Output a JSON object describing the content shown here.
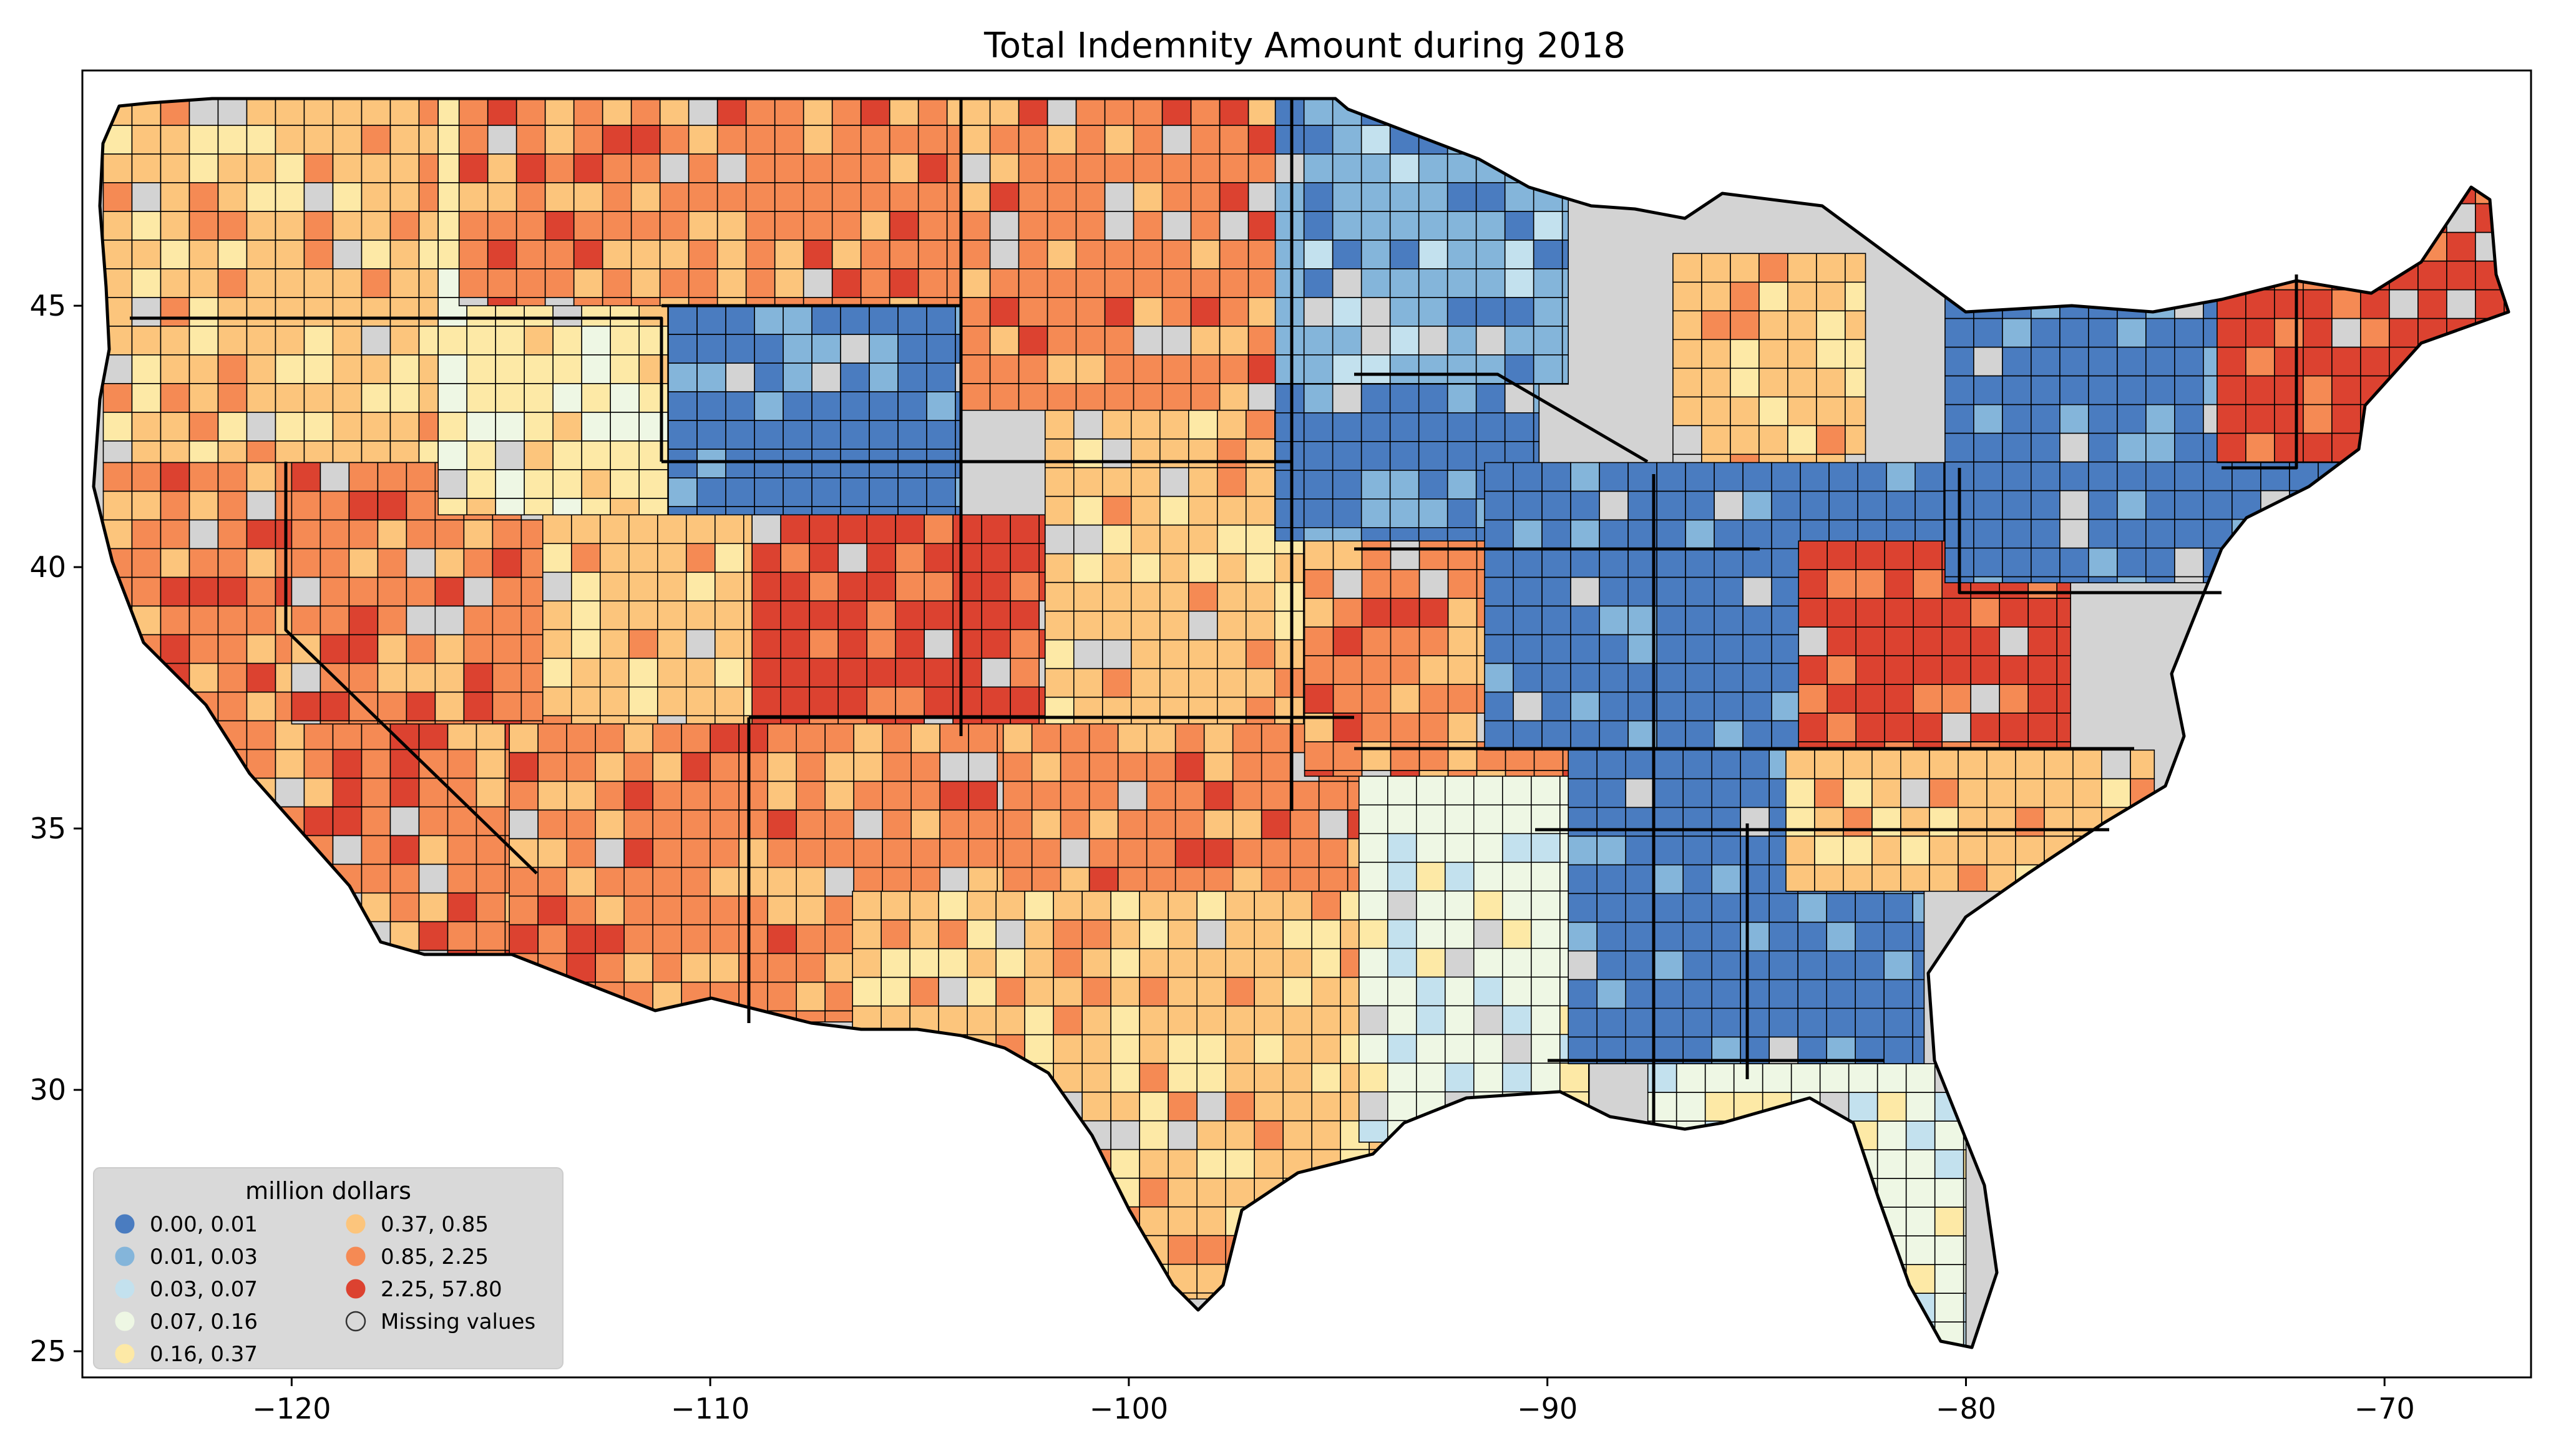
{
  "chart_data": {
    "type": "choropleth",
    "title": "Total Indemnity Amount during 2018",
    "xlabel": "",
    "ylabel": "",
    "xlim": [
      -125,
      -66.5
    ],
    "ylim": [
      24.5,
      49.5
    ],
    "x_ticks": [
      -120,
      -110,
      -100,
      -90,
      -80,
      -70
    ],
    "x_tick_labels": [
      "−120",
      "−110",
      "−100",
      "−90",
      "−80",
      "−70"
    ],
    "y_ticks": [
      25,
      30,
      35,
      40,
      45
    ],
    "y_tick_labels": [
      "25",
      "30",
      "35",
      "40",
      "45"
    ],
    "grid": false,
    "legend": {
      "title": "million dollars",
      "placement": "lower-left",
      "columns": 2,
      "classes": [
        {
          "label": "0.00,  0.01",
          "min": 0.0,
          "max": 0.01,
          "color": "#4a7cc0"
        },
        {
          "label": "0.01,  0.03",
          "min": 0.01,
          "max": 0.03,
          "color": "#84b5da"
        },
        {
          "label": "0.03,  0.07",
          "min": 0.03,
          "max": 0.07,
          "color": "#c3e1ee"
        },
        {
          "label": "0.07,  0.16",
          "min": 0.07,
          "max": 0.16,
          "color": "#eef7e4"
        },
        {
          "label": "0.16,  0.37",
          "min": 0.16,
          "max": 0.37,
          "color": "#fde9a6"
        },
        {
          "label": "0.37,  0.85",
          "min": 0.37,
          "max": 0.85,
          "color": "#fcc57c"
        },
        {
          "label": "0.85,  2.25",
          "min": 0.85,
          "max": 2.25,
          "color": "#f58a54"
        },
        {
          "label": "2.25, 57.80",
          "min": 2.25,
          "max": 57.8,
          "color": "#dc4230"
        },
        {
          "label": "Missing values",
          "color": "#d3d3d3"
        }
      ]
    },
    "regions": [
      {
        "lat_min": 42,
        "lat_max": 49,
        "lon_min": -124.5,
        "lon_max": -116.5,
        "class": 6
      },
      {
        "lat_min": 32,
        "lat_max": 42,
        "lon_min": -124.5,
        "lon_max": -114,
        "class": 7
      },
      {
        "lat_min": 37,
        "lat_max": 42,
        "lon_min": -120,
        "lon_max": -114,
        "class": 7
      },
      {
        "lat_min": 41,
        "lat_max": 49,
        "lon_min": -116.5,
        "lon_max": -104,
        "class": 5
      },
      {
        "lat_min": 41,
        "lat_max": 45,
        "lon_min": -111,
        "lon_max": -104,
        "class": 1
      },
      {
        "lat_min": 45,
        "lat_max": 49,
        "lon_min": -116,
        "lon_max": -104,
        "class": 7
      },
      {
        "lat_min": 37,
        "lat_max": 41,
        "lon_min": -114,
        "lon_max": -109,
        "class": 6
      },
      {
        "lat_min": 37,
        "lat_max": 41,
        "lon_min": -109,
        "lon_max": -102,
        "class": 8
      },
      {
        "lat_min": 31.3,
        "lat_max": 37,
        "lon_min": -114.8,
        "lon_max": -103,
        "class": 7
      },
      {
        "lat_min": 43,
        "lat_max": 49,
        "lon_min": -104,
        "lon_max": -96.5,
        "class": 7
      },
      {
        "lat_min": 37,
        "lat_max": 43,
        "lon_min": -102,
        "lon_max": -95.3,
        "class": 6
      },
      {
        "lat_min": 33.8,
        "lat_max": 37,
        "lon_min": -103,
        "lon_max": -94.4,
        "class": 7
      },
      {
        "lat_min": 26,
        "lat_max": 33.8,
        "lon_min": -106.6,
        "lon_max": -93.5,
        "class": 6
      },
      {
        "lat_min": 43.5,
        "lat_max": 49,
        "lon_min": -96.5,
        "lon_max": -89.5,
        "class": 2
      },
      {
        "lat_min": 40.5,
        "lat_max": 43.5,
        "lon_min": -96.5,
        "lon_max": -90.2,
        "class": 1
      },
      {
        "lat_min": 36,
        "lat_max": 40.5,
        "lon_min": -95.8,
        "lon_max": -89.1,
        "class": 7
      },
      {
        "lat_min": 29,
        "lat_max": 36,
        "lon_min": -94.5,
        "lon_max": -89,
        "class": 4
      },
      {
        "lat_min": 41.5,
        "lat_max": 46,
        "lon_min": -87,
        "lon_max": -82.4,
        "class": 6
      },
      {
        "lat_min": 36.5,
        "lat_max": 42,
        "lon_min": -91.5,
        "lon_max": -80.5,
        "class": 1
      },
      {
        "lat_min": 36.5,
        "lat_max": 40.5,
        "lon_min": -84,
        "lon_max": -77.5,
        "class": 8
      },
      {
        "lat_min": 30.5,
        "lat_max": 36.5,
        "lon_min": -89.5,
        "lon_max": -81,
        "class": 1
      },
      {
        "lat_min": 33.8,
        "lat_max": 36.5,
        "lon_min": -84.3,
        "lon_max": -75.5,
        "class": 6
      },
      {
        "lat_min": 25,
        "lat_max": 30.5,
        "lon_min": -87.6,
        "lon_max": -80,
        "class": 4
      },
      {
        "lat_min": 39.7,
        "lat_max": 47.5,
        "lon_min": -80.5,
        "lon_max": -67,
        "class": 1
      },
      {
        "lat_min": 42,
        "lat_max": 47.5,
        "lon_min": -74,
        "lon_max": -67,
        "class": 8
      }
    ]
  }
}
